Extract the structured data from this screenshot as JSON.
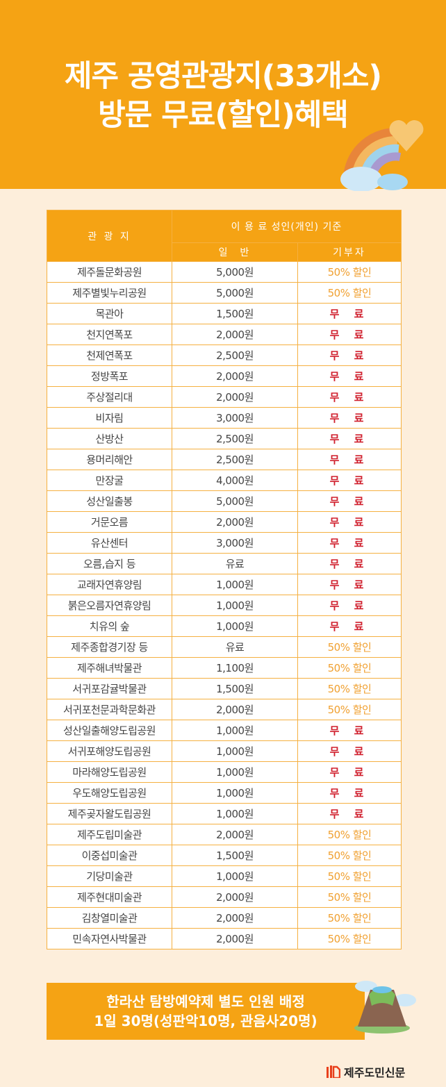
{
  "header": {
    "title_line1": "제주 공영관광지(33개소)",
    "title_line2": "방문 무료(할인)혜택"
  },
  "table": {
    "col_place": "관 광 지",
    "col_fee_group": "이 용 료 성인(개인) 기준",
    "col_general": "일  반",
    "col_donor": "기부자",
    "rows": [
      {
        "place": "제주돌문화공원",
        "general": "5,000원",
        "donor": "50% 할인"
      },
      {
        "place": "제주별빛누리공원",
        "general": "5,000원",
        "donor": "50% 할인"
      },
      {
        "place": "목관아",
        "general": "1,500원",
        "donor": "무 료"
      },
      {
        "place": "천지연폭포",
        "general": "2,000원",
        "donor": "무 료"
      },
      {
        "place": "천제연폭포",
        "general": "2,500원",
        "donor": "무 료"
      },
      {
        "place": "정방폭포",
        "general": "2,000원",
        "donor": "무 료"
      },
      {
        "place": "주상절리대",
        "general": "2,000원",
        "donor": "무 료"
      },
      {
        "place": "비자림",
        "general": "3,000원",
        "donor": "무 료"
      },
      {
        "place": "산방산",
        "general": "2,500원",
        "donor": "무 료"
      },
      {
        "place": "용머리해안",
        "general": "2,500원",
        "donor": "무 료"
      },
      {
        "place": "만장굴",
        "general": "4,000원",
        "donor": "무 료"
      },
      {
        "place": "성산일출봉",
        "general": "5,000원",
        "donor": "무 료"
      },
      {
        "place": "거문오름",
        "general": "2,000원",
        "donor": "무 료"
      },
      {
        "place": "유산센터",
        "general": "3,000원",
        "donor": "무 료"
      },
      {
        "place": "오름,습지 등",
        "general": "유료",
        "donor": "무 료"
      },
      {
        "place": "교래자연휴양림",
        "general": "1,000원",
        "donor": "무 료"
      },
      {
        "place": "붉은오름자연휴양림",
        "general": "1,000원",
        "donor": "무 료"
      },
      {
        "place": "치유의 숲",
        "general": "1,000원",
        "donor": "무 료"
      },
      {
        "place": "제주종합경기장 등",
        "general": "유료",
        "donor": "50% 할인"
      },
      {
        "place": "제주해녀박물관",
        "general": "1,100원",
        "donor": "50% 할인"
      },
      {
        "place": "서귀포감귤박물관",
        "general": "1,500원",
        "donor": "50% 할인"
      },
      {
        "place": "서귀포천문과학문화관",
        "general": "2,000원",
        "donor": "50% 할인"
      },
      {
        "place": "성산일출해양도립공원",
        "general": "1,000원",
        "donor": "무 료"
      },
      {
        "place": "서귀포해양도립공원",
        "general": "1,000원",
        "donor": "무 료"
      },
      {
        "place": "마라해양도립공원",
        "general": "1,000원",
        "donor": "무 료"
      },
      {
        "place": "우도해양도립공원",
        "general": "1,000원",
        "donor": "무 료"
      },
      {
        "place": "제주곶자왈도립공원",
        "general": "1,000원",
        "donor": "무 료"
      },
      {
        "place": "제주도립미술관",
        "general": "2,000원",
        "donor": "50% 할인"
      },
      {
        "place": "이중섭미술관",
        "general": "1,500원",
        "donor": "50% 할인"
      },
      {
        "place": "기당미술관",
        "general": "1,000원",
        "donor": "50% 할인"
      },
      {
        "place": "제주현대미술관",
        "general": "2,000원",
        "donor": "50% 할인"
      },
      {
        "place": "김창열미술관",
        "general": "2,000원",
        "donor": "50% 할인"
      },
      {
        "place": "민속자연사박물관",
        "general": "2,000원",
        "donor": "50% 할인"
      }
    ]
  },
  "notice": {
    "line1": "한라산 탐방예약제 별도 인원 배정",
    "line2": "1일 30명(성판악10명, 관음사20명)"
  },
  "footer": {
    "logo_text": "제주도민신문"
  },
  "colors": {
    "brand_orange": "#F5A314",
    "background": "#FDEEDB",
    "free": "#D0202E",
    "discount": "#F0A030"
  }
}
